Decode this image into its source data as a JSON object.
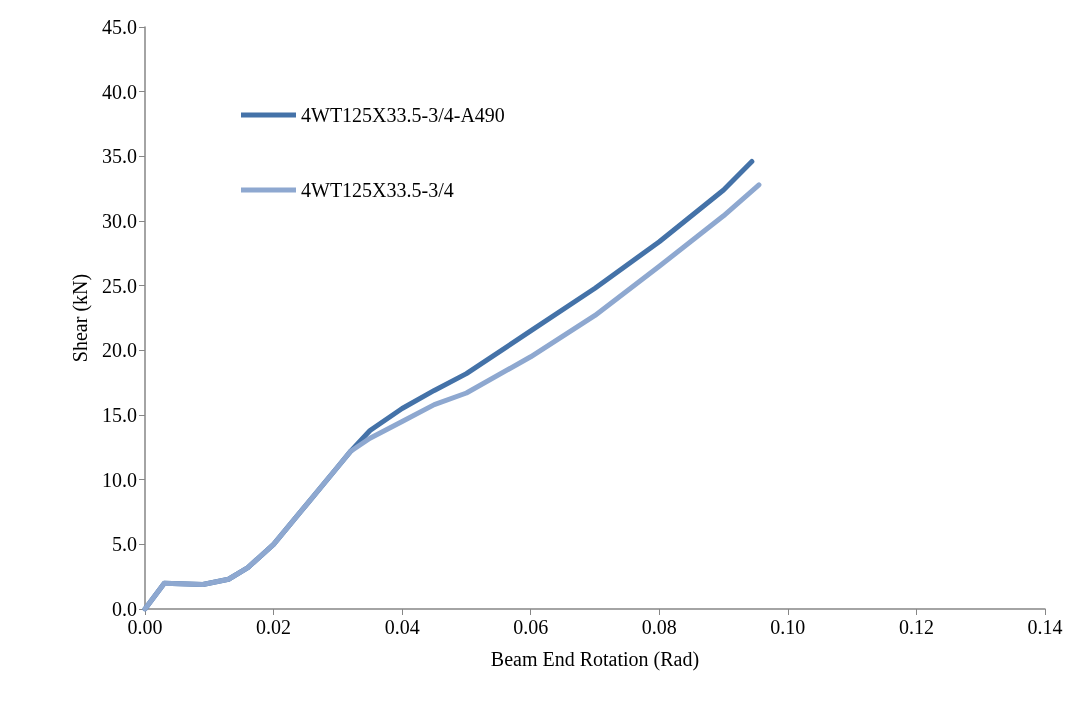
{
  "chart_data": {
    "type": "line",
    "xlabel": "Beam End Rotation (Rad)",
    "ylabel": "Shear (kN)",
    "xlim": [
      0,
      0.14
    ],
    "xticks": [
      {
        "value": 0,
        "label": "0.00"
      },
      {
        "value": 0.02,
        "label": "0.02"
      },
      {
        "value": 0.04,
        "label": "0.04"
      },
      {
        "value": 0.06,
        "label": "0.06"
      },
      {
        "value": 0.08,
        "label": "0.08"
      },
      {
        "value": 0.1,
        "label": "0.10"
      },
      {
        "value": 0.12,
        "label": "0.12"
      },
      {
        "value": 0.14,
        "label": "0.14"
      }
    ],
    "ylim": [
      0,
      45
    ],
    "yticks": [
      {
        "value": 0,
        "label": "0.0"
      },
      {
        "value": 5,
        "label": "5.0"
      },
      {
        "value": 10,
        "label": "10.0"
      },
      {
        "value": 15,
        "label": "15.0"
      },
      {
        "value": 20,
        "label": "20.0"
      },
      {
        "value": 25,
        "label": "25.0"
      },
      {
        "value": 30,
        "label": "30.0"
      },
      {
        "value": 35,
        "label": "35.0"
      },
      {
        "value": 40,
        "label": "40.0"
      },
      {
        "value": 45,
        "label": "45.0"
      }
    ],
    "grid": false,
    "legend": "top left",
    "marker": "none",
    "line_style": "solid",
    "series": [
      {
        "name": "4WT125X33.5-3/4-A490",
        "color": "#4472a8",
        "x": [
          0,
          0.003,
          0.009,
          0.013,
          0.016,
          0.02,
          0.025,
          0.03,
          0.032,
          0.035,
          0.04,
          0.045,
          0.05,
          0.06,
          0.07,
          0.08,
          0.09,
          0.0944
        ],
        "values": [
          0,
          2.0,
          1.9,
          2.3,
          3.2,
          5.0,
          8.0,
          11.0,
          12.2,
          13.8,
          15.5,
          16.9,
          18.2,
          21.5,
          24.8,
          28.4,
          32.4,
          34.6
        ]
      },
      {
        "name": "4WT125X33.5-3/4",
        "color": "#8ea8d0",
        "x": [
          0,
          0.003,
          0.009,
          0.013,
          0.016,
          0.02,
          0.025,
          0.03,
          0.032,
          0.035,
          0.04,
          0.045,
          0.05,
          0.06,
          0.07,
          0.08,
          0.09,
          0.0955
        ],
        "values": [
          0,
          2.0,
          1.9,
          2.3,
          3.2,
          5.0,
          8.0,
          11.0,
          12.2,
          13.2,
          14.5,
          15.8,
          16.7,
          19.5,
          22.7,
          26.5,
          30.4,
          32.8
        ]
      }
    ]
  }
}
